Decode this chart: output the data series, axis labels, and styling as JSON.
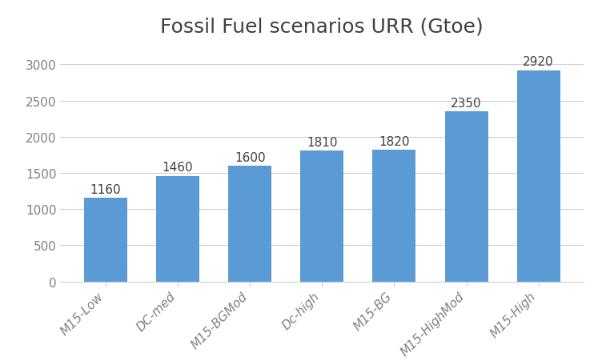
{
  "title": "Fossil Fuel scenarios URR (Gtoe)",
  "categories": [
    "M15-Low",
    "DC-med",
    "M15-BGMod",
    "Dc-high",
    "M15-BG",
    "M15-HighMod",
    "M15-High"
  ],
  "values": [
    1160,
    1460,
    1600,
    1810,
    1820,
    2350,
    2920
  ],
  "bar_color": "#5B9BD5",
  "ylim": [
    0,
    3300
  ],
  "yticks": [
    0,
    500,
    1000,
    1500,
    2000,
    2500,
    3000
  ],
  "title_fontsize": 18,
  "tick_fontsize": 11,
  "annotation_fontsize": 11,
  "background_color": "#ffffff",
  "grid_color": "#d0d0d0",
  "bar_width": 0.6,
  "title_color": "#404040",
  "tick_color": "#808080"
}
